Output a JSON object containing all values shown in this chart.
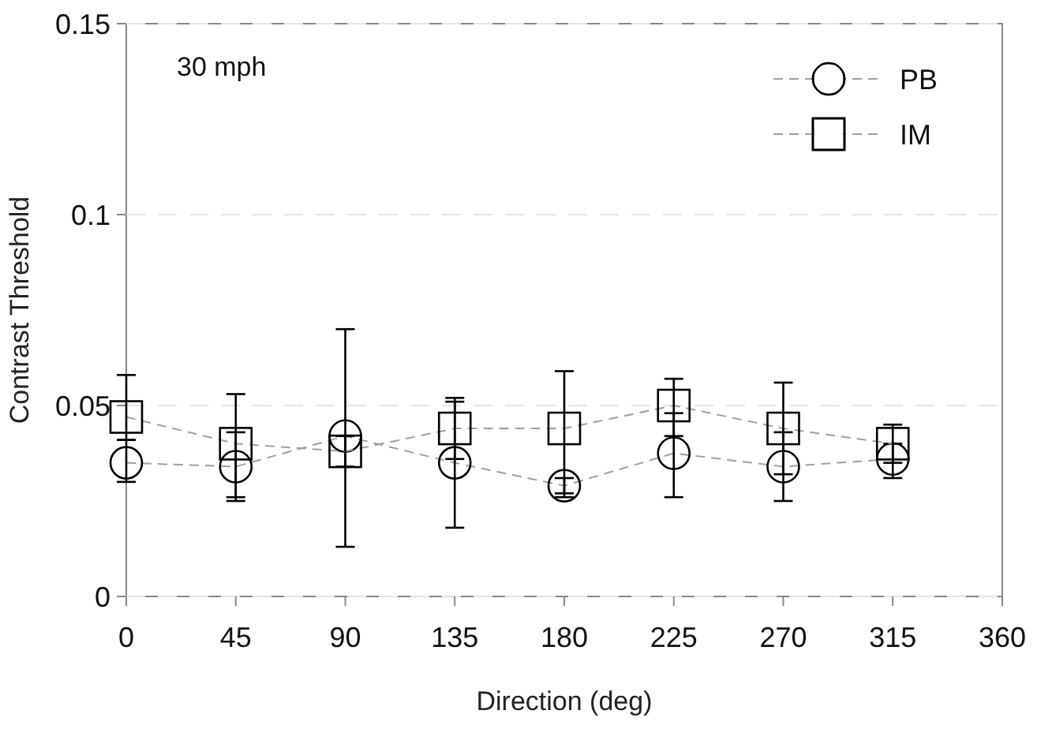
{
  "chart_data": {
    "type": "line",
    "xlabel": "Direction (deg)",
    "ylabel": "Contrast Threshold",
    "annotations": [
      "30 mph"
    ],
    "x": [
      0,
      45,
      90,
      135,
      180,
      225,
      270,
      315
    ],
    "series": [
      {
        "name": "PB",
        "color": "#000000",
        "marker": "circle",
        "values": [
          0.035,
          0.034,
          0.042,
          0.035,
          0.029,
          0.0375,
          0.034,
          0.036
        ],
        "errors": [
          [
            0.03,
            0.041
          ],
          [
            0.026,
            0.043
          ],
          [
            0.013,
            0.07
          ],
          [
            0.018,
            0.052
          ],
          [
            0.026,
            0.031
          ],
          [
            0.026,
            0.048
          ],
          [
            0.025,
            0.043
          ],
          [
            0.031,
            0.04
          ]
        ]
      },
      {
        "name": "IM",
        "color": "#000000",
        "marker": "square",
        "values": [
          0.047,
          0.04,
          0.038,
          0.044,
          0.044,
          0.05,
          0.044,
          0.04
        ],
        "errors": [
          [
            0.041,
            0.058
          ],
          [
            0.025,
            0.053
          ],
          [
            0.034,
            0.042
          ],
          [
            0.036,
            0.051
          ],
          [
            0.027,
            0.059
          ],
          [
            0.042,
            0.057
          ],
          [
            0.032,
            0.056
          ],
          [
            0.035,
            0.045
          ]
        ]
      }
    ],
    "xlim": [
      0,
      360
    ],
    "xticks": [
      0,
      45,
      90,
      135,
      180,
      225,
      270,
      315,
      360
    ],
    "ylim": [
      0,
      0.15
    ],
    "yticks": [
      0,
      0.05,
      0.1,
      0.15
    ],
    "grid": "y",
    "legend": "top right",
    "line_style": "dashed"
  }
}
